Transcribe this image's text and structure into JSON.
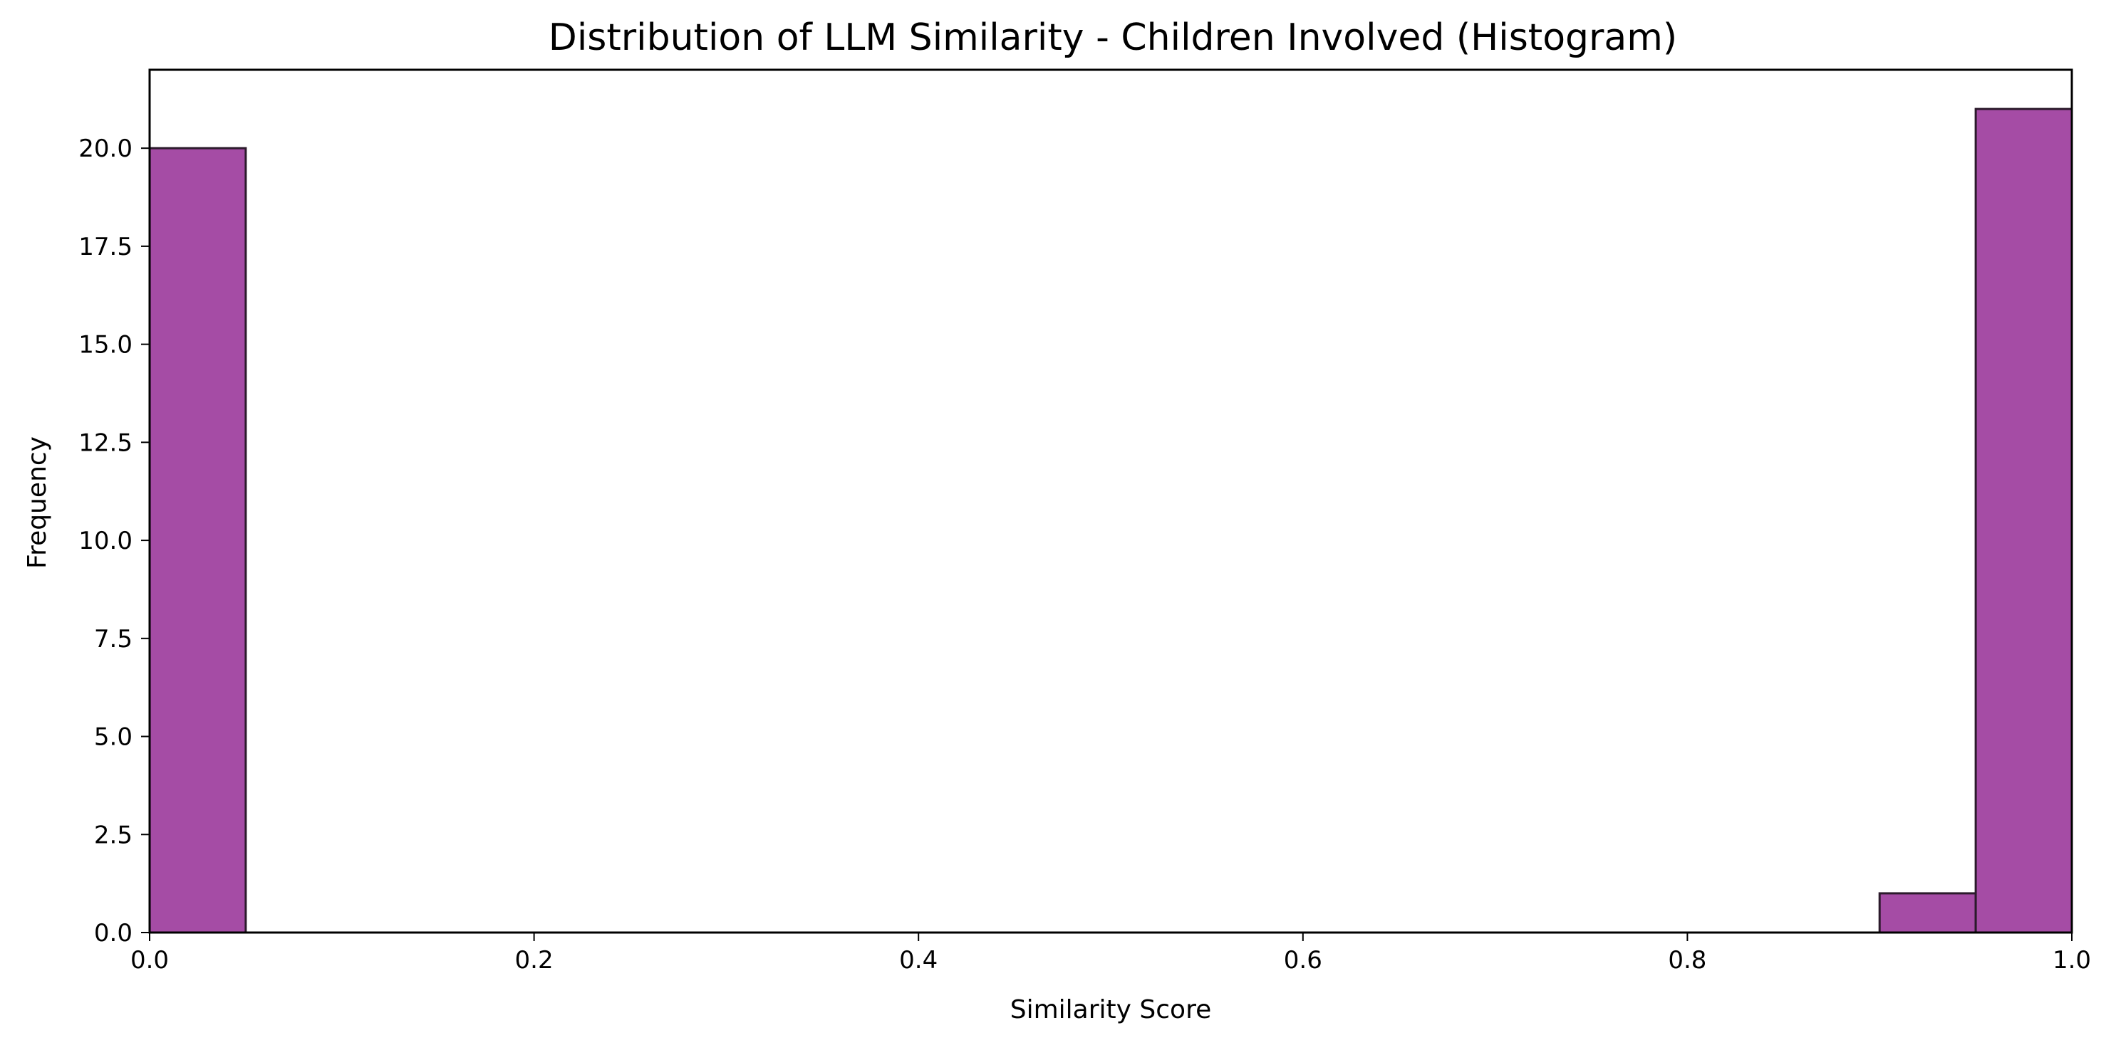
{
  "chart_data": {
    "type": "bar",
    "title": "Distribution of LLM Similarity - Children Involved (Histogram)",
    "xlabel": "Similarity Score",
    "ylabel": "Frequency",
    "xlim": [
      0.0,
      1.0
    ],
    "ylim": [
      0,
      22
    ],
    "x_ticks": [
      "0.0",
      "0.2",
      "0.4",
      "0.6",
      "0.8",
      "1.0"
    ],
    "y_ticks": [
      "0.0",
      "2.5",
      "5.0",
      "7.5",
      "10.0",
      "12.5",
      "15.0",
      "17.5",
      "20.0"
    ],
    "bins": [
      {
        "start": 0.0,
        "end": 0.05,
        "count": 20
      },
      {
        "start": 0.9,
        "end": 0.95,
        "count": 1
      },
      {
        "start": 0.95,
        "end": 1.0,
        "count": 21
      }
    ],
    "grid": false,
    "colors": {
      "bar_fill": "#a54ca5",
      "bar_edge": "#2b1a2b",
      "axis": "#000000"
    }
  }
}
